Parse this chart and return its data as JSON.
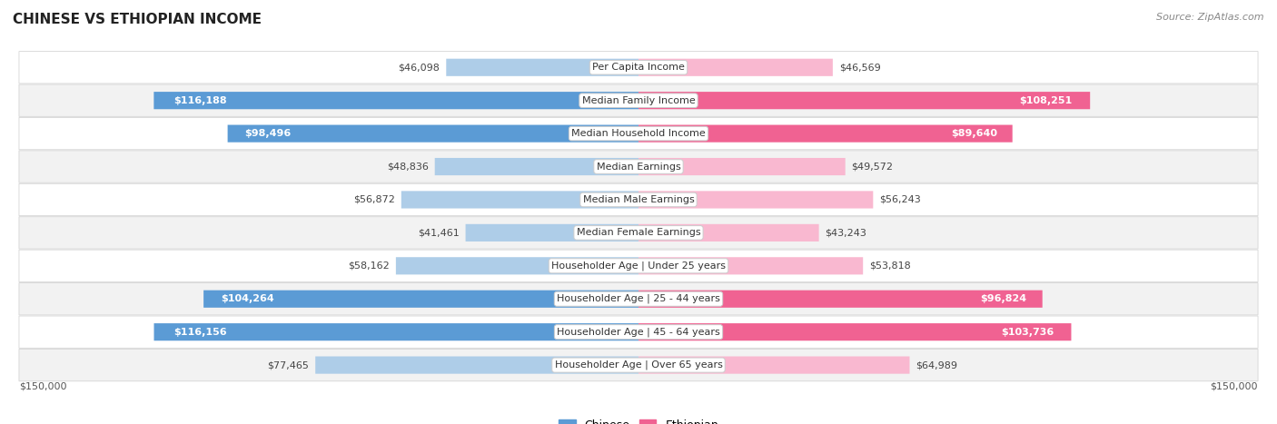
{
  "title": "CHINESE VS ETHIOPIAN INCOME",
  "source": "Source: ZipAtlas.com",
  "categories": [
    "Per Capita Income",
    "Median Family Income",
    "Median Household Income",
    "Median Earnings",
    "Median Male Earnings",
    "Median Female Earnings",
    "Householder Age | Under 25 years",
    "Householder Age | 25 - 44 years",
    "Householder Age | 45 - 64 years",
    "Householder Age | Over 65 years"
  ],
  "chinese_values": [
    46098,
    116188,
    98496,
    48836,
    56872,
    41461,
    58162,
    104264,
    116156,
    77465
  ],
  "ethiopian_values": [
    46569,
    108251,
    89640,
    49572,
    56243,
    43243,
    53818,
    96824,
    103736,
    64989
  ],
  "chinese_labels": [
    "$46,098",
    "$116,188",
    "$98,496",
    "$48,836",
    "$56,872",
    "$41,461",
    "$58,162",
    "$104,264",
    "$116,156",
    "$77,465"
  ],
  "ethiopian_labels": [
    "$46,569",
    "$108,251",
    "$89,640",
    "$49,572",
    "$56,243",
    "$43,243",
    "$53,818",
    "$96,824",
    "$103,736",
    "$64,989"
  ],
  "chinese_color_light": "#aecde8",
  "chinese_color_dark": "#5b9bd5",
  "ethiopian_color_light": "#f9b8d0",
  "ethiopian_color_dark": "#f06292",
  "chinese_label_inside_threshold": 80000,
  "ethiopian_label_inside_threshold": 80000,
  "max_value": 150000,
  "bg_color": "#ffffff",
  "row_bg_color_light": "#f8f8f8",
  "row_bg_color_dark": "#eeeeee",
  "title_fontsize": 11,
  "label_fontsize": 8,
  "category_fontsize": 8,
  "source_fontsize": 8
}
